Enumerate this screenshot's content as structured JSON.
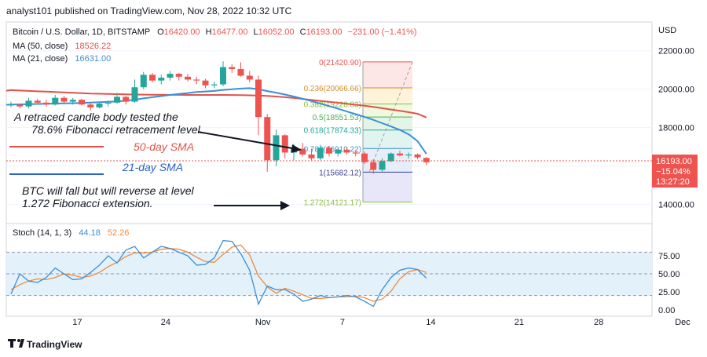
{
  "header": {
    "publisher": "analyst101 published on TradingView.com, Nov 28, 2022 10:32 UTC"
  },
  "legend": {
    "symbol": "Bitcoin / U.S. Dollar, 1D, BITSTAMP",
    "ohlc": {
      "o_label": "O",
      "o": "16420.00",
      "h_label": "H",
      "h": "16477.00",
      "l_label": "L",
      "l": "16052.00",
      "c_label": "C",
      "c": "16193.00",
      "change": "−231.00 (−1.41%)"
    },
    "ma50": {
      "label": "MA (50, close)",
      "value": "18526.22"
    },
    "ma21": {
      "label": "MA (21, close)",
      "value": "16631.00"
    }
  },
  "annotations": {
    "retracement_line1": "A retraced candle body tested the",
    "retracement_line2": "78.6% Fibonacci retracement level.",
    "sma50_label": "50-day SMA",
    "sma21_label": "21-day SMA",
    "fall_line1": "BTC will fall but will reverse at level",
    "fall_line2": "1.272 Fibonacci extension."
  },
  "fibonacci": [
    {
      "label": "0(21420.90)",
      "price": 21420.9
    },
    {
      "label": "0.236(20066.66)",
      "price": 20066.66
    },
    {
      "label": "0.382(19228.83)",
      "price": 19228.83
    },
    {
      "label": "0.5(18551.53)",
      "price": 18551.53
    },
    {
      "label": "0.618(17874.33)",
      "price": 17874.33
    },
    {
      "label": "0.786(16910.22)",
      "price": 16910.22
    },
    {
      "label": "1(15682.12)",
      "price": 15682.12
    },
    {
      "label": "1.272(14121.17)",
      "price": 14121.17
    }
  ],
  "price_box": {
    "price": "16193.00",
    "change": "−15.04%",
    "countdown": "13:27:20"
  },
  "stoch": {
    "label": "Stoch (14, 1, 3)",
    "k": "44.18",
    "d": "52.26"
  },
  "footer": {
    "brand": "TradingView"
  },
  "colors": {
    "up": "#26a69a",
    "down": "#ef5350",
    "ma50": "#e0534a",
    "ma21": "#3d8fd6",
    "stoch_k": "#3d8fd6",
    "stoch_d": "#f08a3a",
    "stoch_band": "#e3f1fb"
  },
  "chart_data": [
    {
      "type": "candlestick",
      "title": "Bitcoin / U.S. Dollar, 1D, BITSTAMP",
      "x_ticks": [
        "17",
        "24",
        "Nov",
        "7",
        "14",
        "21",
        "28",
        "Dec"
      ],
      "y_ticks": [
        "22000.00",
        "20000.00",
        "18000.00",
        "16000.00",
        "14000.00"
      ],
      "y_label": "USD",
      "ylim": [
        13000,
        23500
      ],
      "candles": [
        [
          19150,
          19350,
          19050,
          19200
        ],
        [
          19200,
          19250,
          19000,
          19100
        ],
        [
          19100,
          19550,
          19000,
          19400
        ],
        [
          19400,
          19500,
          19200,
          19300
        ],
        [
          19300,
          19450,
          19100,
          19200
        ],
        [
          19200,
          19700,
          19150,
          19550
        ],
        [
          19550,
          19650,
          19250,
          19350
        ],
        [
          19350,
          19550,
          19200,
          19450
        ],
        [
          19450,
          19500,
          19150,
          19200
        ],
        [
          19200,
          19300,
          18900,
          19050
        ],
        [
          19050,
          19350,
          19000,
          19250
        ],
        [
          19250,
          19400,
          19100,
          19300
        ],
        [
          19300,
          19800,
          19250,
          19600
        ],
        [
          19600,
          19650,
          19200,
          19350
        ],
        [
          19350,
          20500,
          19300,
          20100
        ],
        [
          20100,
          20900,
          20000,
          20750
        ],
        [
          20750,
          20850,
          20350,
          20450
        ],
        [
          20450,
          20750,
          20250,
          20600
        ],
        [
          20600,
          20950,
          20450,
          20800
        ],
        [
          20800,
          20850,
          20450,
          20650
        ],
        [
          20650,
          20800,
          20400,
          20500
        ],
        [
          20500,
          20650,
          20250,
          20450
        ],
        [
          20450,
          20550,
          20050,
          20200
        ],
        [
          20200,
          20400,
          20050,
          20250
        ],
        [
          20250,
          21450,
          20150,
          21150
        ],
        [
          21150,
          21300,
          20850,
          21050
        ],
        [
          21050,
          21400,
          20650,
          20700
        ],
        [
          20700,
          20950,
          20350,
          20500
        ],
        [
          20500,
          20700,
          17600,
          18550
        ],
        [
          18550,
          18700,
          15700,
          16300
        ],
        [
          16300,
          17900,
          16000,
          17600
        ],
        [
          17600,
          17650,
          16400,
          16700
        ],
        [
          16700,
          17150,
          16300,
          16900
        ],
        [
          16900,
          17200,
          16500,
          16600
        ],
        [
          16600,
          16900,
          16300,
          16400
        ],
        [
          16400,
          17100,
          16300,
          16950
        ],
        [
          16950,
          17050,
          16500,
          16650
        ],
        [
          16650,
          16900,
          16500,
          16850
        ],
        [
          16850,
          16950,
          16600,
          16700
        ],
        [
          16700,
          16800,
          16500,
          16650
        ],
        [
          16650,
          16750,
          16100,
          16200
        ],
        [
          16200,
          16350,
          15600,
          15800
        ],
        [
          15800,
          16400,
          15700,
          16250
        ],
        [
          16250,
          16700,
          16200,
          16650
        ],
        [
          16650,
          16800,
          16500,
          16550
        ],
        [
          16550,
          16700,
          16400,
          16600
        ],
        [
          16600,
          16650,
          16350,
          16450
        ],
        [
          16420,
          16477,
          16052,
          16193
        ]
      ],
      "ma50": [
        19950,
        19930,
        19910,
        19890,
        19870,
        19850,
        19830,
        19810,
        19790,
        19770,
        19760,
        19750,
        19740,
        19730,
        19720,
        19715,
        19710,
        19708,
        19705,
        19703,
        19700,
        19700,
        19700,
        19700,
        19700,
        19695,
        19690,
        19680,
        19670,
        19650,
        19620,
        19580,
        19540,
        19490,
        19440,
        19390,
        19340,
        19290,
        19240,
        19190,
        19140,
        19080,
        19010,
        18940,
        18870,
        18800,
        18720,
        18526
      ],
      "ma21": [
        19200,
        19210,
        19220,
        19230,
        19240,
        19250,
        19260,
        19270,
        19280,
        19300,
        19320,
        19340,
        19360,
        19400,
        19450,
        19520,
        19580,
        19640,
        19700,
        19750,
        19800,
        19850,
        19880,
        19910,
        19960,
        20000,
        20030,
        20050,
        20000,
        19900,
        19820,
        19720,
        19620,
        19500,
        19380,
        19250,
        19120,
        18980,
        18840,
        18700,
        18560,
        18400,
        18230,
        18060,
        17880,
        17650,
        17300,
        16631
      ]
    },
    {
      "type": "line",
      "title": "Stoch (14, 1, 3)",
      "y_ticks": [
        "75.00",
        "50.00",
        "25.00",
        "0.00"
      ],
      "ylim": [
        0,
        100
      ],
      "series": [
        {
          "name": "%K",
          "values": [
            22,
            50,
            40,
            38,
            45,
            58,
            50,
            42,
            43,
            52,
            62,
            75,
            65,
            83,
            88,
            72,
            80,
            88,
            85,
            80,
            75,
            62,
            63,
            72,
            96,
            95,
            78,
            55,
            8,
            33,
            28,
            28,
            22,
            12,
            15,
            20,
            17,
            18,
            20,
            18,
            12,
            5,
            28,
            45,
            55,
            58,
            56,
            44
          ]
        },
        {
          "name": "%D",
          "values": [
            28,
            35,
            40,
            43,
            42,
            45,
            50,
            48,
            45,
            47,
            52,
            60,
            66,
            74,
            79,
            79,
            80,
            84,
            85,
            84,
            80,
            73,
            67,
            66,
            77,
            87,
            90,
            76,
            47,
            32,
            23,
            30,
            26,
            21,
            16,
            16,
            17,
            18,
            18,
            19,
            17,
            12,
            15,
            26,
            43,
            53,
            56,
            52
          ]
        }
      ]
    }
  ]
}
